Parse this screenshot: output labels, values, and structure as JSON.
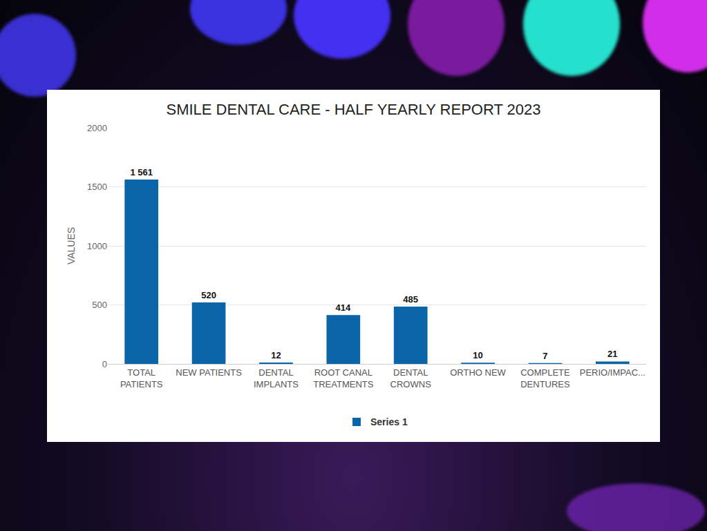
{
  "chart_data": {
    "type": "bar",
    "title": "SMILE DENTAL CARE - HALF YEARLY REPORT 2023",
    "y_label": "VALUES",
    "categories": [
      "TOTAL PATIENTS",
      "NEW PATIENTS",
      "DENTAL IMPLANTS",
      "ROOT CANAL TREATMENTS",
      "DENTAL CROWNS",
      "ORTHO NEW",
      "COMPLETE DENTURES",
      "PERIO/IMPAC..."
    ],
    "series": [
      {
        "name": "Series 1",
        "color": "#0a64a8",
        "values": [
          1561,
          520,
          12,
          414,
          485,
          10,
          7,
          21
        ],
        "value_labels": [
          "1 561",
          "520",
          "12",
          "414",
          "485",
          "10",
          "7",
          "21"
        ]
      }
    ],
    "ylim": [
      0,
      2000
    ],
    "yticks": [
      0,
      500,
      1000,
      1500,
      2000
    ],
    "grid": true,
    "legend": "bottom",
    "data_labels": true
  }
}
